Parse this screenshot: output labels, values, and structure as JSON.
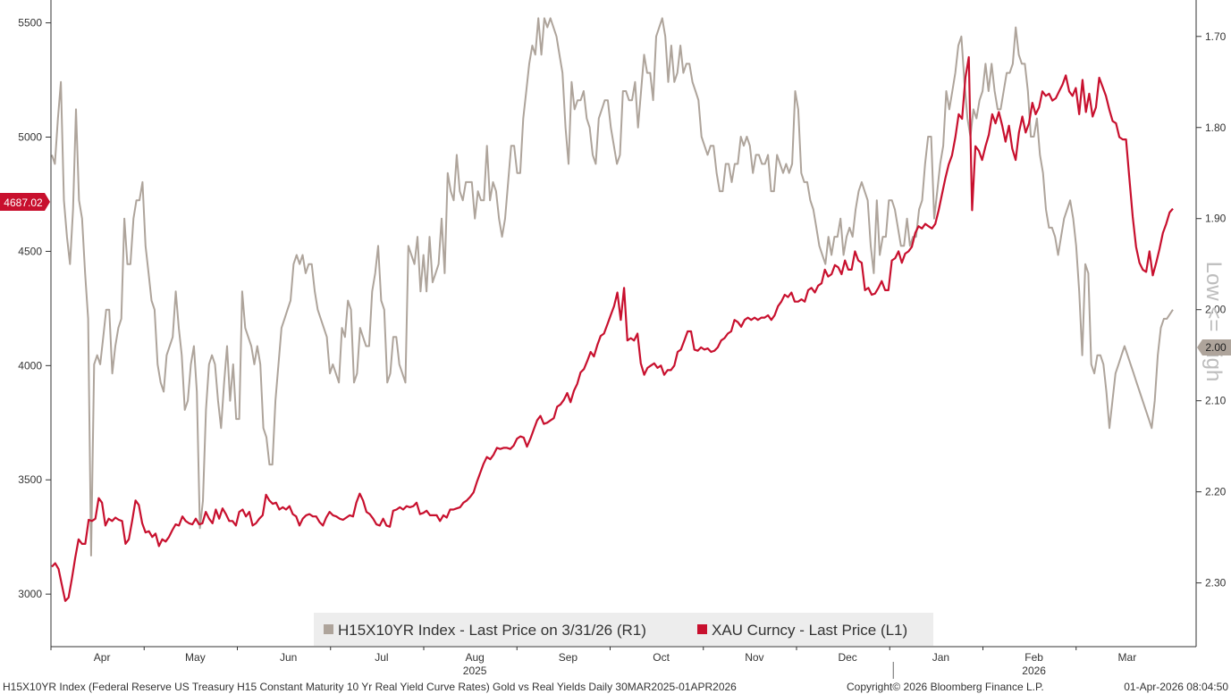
{
  "chart_data": {
    "type": "line",
    "title": "Gold vs Real Yields",
    "x_range": [
      "30MAR2025",
      "01APR2026"
    ],
    "month_labels": [
      "Apr",
      "May",
      "Jun",
      "Jul",
      "Aug",
      "Sep",
      "Oct",
      "Nov",
      "Dec",
      "Jan",
      "Feb",
      "Mar"
    ],
    "year_labels": [
      {
        "after": "Jul",
        "text": "2025"
      },
      {
        "after": "Jan",
        "text": "2026"
      }
    ],
    "left_axis": {
      "ylim": [
        2770,
        5600
      ],
      "ticks": [
        "3000",
        "3500",
        "4000",
        "4500",
        "5000",
        "5500"
      ]
    },
    "right_axis": {
      "ylim": [
        1.66,
        2.37
      ],
      "inverted": true,
      "ticks": [
        "1.70",
        "1.80",
        "1.90",
        "2.00",
        "2.10",
        "2.20",
        "2.30"
      ],
      "label": "Low <= High"
    },
    "series": [
      {
        "name": "XAU Curncy - Last Price (L1)",
        "axis": "left",
        "color": "#c8102e",
        "last_value": "4687.02",
        "values": [
          3120,
          3135,
          3110,
          3040,
          2970,
          2985,
          3070,
          3160,
          3240,
          3220,
          3220,
          3325,
          3320,
          3330,
          3420,
          3400,
          3300,
          3330,
          3320,
          3335,
          3325,
          3320,
          3220,
          3240,
          3320,
          3410,
          3390,
          3310,
          3270,
          3275,
          3250,
          3265,
          3210,
          3240,
          3230,
          3250,
          3280,
          3305,
          3300,
          3340,
          3320,
          3310,
          3305,
          3330,
          3305,
          3310,
          3360,
          3330,
          3310,
          3370,
          3330,
          3375,
          3350,
          3320,
          3320,
          3300,
          3360,
          3370,
          3340,
          3360,
          3300,
          3310,
          3330,
          3345,
          3435,
          3410,
          3395,
          3400,
          3370,
          3380,
          3370,
          3385,
          3350,
          3340,
          3300,
          3330,
          3345,
          3350,
          3340,
          3340,
          3315,
          3300,
          3335,
          3360,
          3345,
          3340,
          3330,
          3325,
          3335,
          3345,
          3340,
          3400,
          3440,
          3410,
          3360,
          3350,
          3330,
          3305,
          3300,
          3330,
          3300,
          3295,
          3365,
          3370,
          3380,
          3370,
          3385,
          3380,
          3385,
          3400,
          3350,
          3355,
          3365,
          3345,
          3345,
          3345,
          3320,
          3345,
          3335,
          3370,
          3370,
          3375,
          3380,
          3400,
          3410,
          3425,
          3445,
          3490,
          3530,
          3570,
          3600,
          3590,
          3610,
          3640,
          3635,
          3640,
          3640,
          3635,
          3650,
          3680,
          3690,
          3685,
          3645,
          3680,
          3720,
          3760,
          3780,
          3745,
          3750,
          3760,
          3770,
          3820,
          3830,
          3850,
          3880,
          3840,
          3890,
          3920,
          3970,
          3985,
          4020,
          4060,
          4040,
          4090,
          4130,
          4140,
          4180,
          4220,
          4260,
          4320,
          4200,
          4340,
          4110,
          4120,
          4110,
          4140,
          4010,
          3960,
          3990,
          4000,
          4010,
          3990,
          4000,
          3960,
          3980,
          3980,
          4000,
          4060,
          4070,
          4110,
          4150,
          4150,
          4070,
          4065,
          4080,
          4070,
          4075,
          4060,
          4065,
          4080,
          4110,
          4120,
          4140,
          4150,
          4200,
          4190,
          4170,
          4200,
          4210,
          4200,
          4210,
          4200,
          4210,
          4210,
          4220,
          4200,
          4220,
          4260,
          4280,
          4310,
          4300,
          4320,
          4280,
          4280,
          4290,
          4280,
          4330,
          4340,
          4320,
          4350,
          4360,
          4420,
          4390,
          4400,
          4440,
          4430,
          4400,
          4460,
          4420,
          4420,
          4500,
          4460,
          4450,
          4330,
          4340,
          4310,
          4315,
          4340,
          4370,
          4330,
          4330,
          4460,
          4470,
          4500,
          4450,
          4490,
          4500,
          4520,
          4580,
          4610,
          4600,
          4620,
          4610,
          4600,
          4620,
          4680,
          4750,
          4820,
          4880,
          4920,
          5000,
          5100,
          5080,
          5260,
          5350,
          4680,
          4960,
          4940,
          4900,
          4960,
          5010,
          5100,
          5060,
          5110,
          5050,
          4980,
          5050,
          4950,
          4900,
          5020,
          5090,
          5020,
          5060,
          5150,
          5100,
          5130,
          5200,
          5180,
          5190,
          5160,
          5170,
          5200,
          5230,
          5270,
          5200,
          5180,
          5215,
          5100,
          5250,
          5110,
          5190,
          5090,
          5130,
          5260,
          5220,
          5180,
          5120,
          5070,
          5060,
          5000,
          4990,
          4990,
          4820,
          4650,
          4520,
          4450,
          4420,
          4410,
          4500,
          4395,
          4450,
          4510,
          4580,
          4620,
          4670,
          4687
        ]
      },
      {
        "name": "H15X10YR Index - Last Price on 3/31/26 (R1)",
        "axis": "right",
        "color": "#aea49b",
        "last_value": "2.00",
        "values": [
          1.83,
          1.84,
          1.79,
          1.75,
          1.88,
          1.92,
          1.95,
          1.89,
          1.78,
          1.88,
          1.9,
          1.96,
          2.01,
          2.27,
          2.06,
          2.05,
          2.06,
          2.03,
          2.0,
          2.0,
          2.07,
          2.04,
          2.02,
          2.01,
          1.9,
          1.95,
          1.95,
          1.9,
          1.88,
          1.88,
          1.86,
          1.93,
          1.96,
          1.99,
          2.0,
          2.06,
          2.08,
          2.09,
          2.05,
          2.04,
          2.03,
          1.98,
          2.02,
          2.05,
          2.11,
          2.1,
          2.06,
          2.04,
          2.09,
          2.24,
          2.21,
          2.11,
          2.06,
          2.05,
          2.06,
          2.1,
          2.13,
          2.08,
          2.04,
          2.1,
          2.06,
          2.12,
          2.12,
          1.98,
          2.02,
          2.03,
          2.04,
          2.06,
          2.04,
          2.06,
          2.13,
          2.14,
          2.17,
          2.17,
          2.1,
          2.06,
          2.02,
          2.01,
          2.0,
          1.99,
          1.95,
          1.94,
          1.95,
          1.94,
          1.96,
          1.95,
          1.95,
          1.98,
          2.0,
          2.01,
          2.02,
          2.03,
          2.07,
          2.06,
          2.07,
          2.08,
          2.02,
          2.03,
          1.99,
          2.0,
          2.08,
          2.07,
          2.02,
          2.03,
          2.04,
          2.04,
          1.98,
          1.96,
          1.93,
          1.99,
          2.0,
          2.08,
          2.07,
          2.03,
          2.03,
          2.06,
          2.07,
          2.08,
          1.93,
          1.94,
          1.95,
          1.92,
          1.98,
          1.94,
          1.98,
          1.92,
          1.97,
          1.96,
          1.95,
          1.9,
          1.96,
          1.85,
          1.87,
          1.88,
          1.83,
          1.87,
          1.88,
          1.86,
          1.86,
          1.86,
          1.9,
          1.87,
          1.88,
          1.88,
          1.82,
          1.88,
          1.86,
          1.87,
          1.9,
          1.92,
          1.9,
          1.86,
          1.82,
          1.82,
          1.85,
          1.85,
          1.79,
          1.76,
          1.73,
          1.71,
          1.72,
          1.68,
          1.72,
          1.68,
          1.69,
          1.68,
          1.69,
          1.7,
          1.72,
          1.74,
          1.8,
          1.84,
          1.75,
          1.78,
          1.77,
          1.77,
          1.76,
          1.79,
          1.8,
          1.83,
          1.84,
          1.79,
          1.78,
          1.77,
          1.77,
          1.8,
          1.82,
          1.84,
          1.83,
          1.76,
          1.76,
          1.77,
          1.77,
          1.75,
          1.8,
          1.76,
          1.72,
          1.74,
          1.74,
          1.77,
          1.7,
          1.69,
          1.68,
          1.7,
          1.75,
          1.71,
          1.75,
          1.74,
          1.71,
          1.74,
          1.73,
          1.73,
          1.75,
          1.76,
          1.77,
          1.81,
          1.82,
          1.83,
          1.82,
          1.82,
          1.85,
          1.87,
          1.87,
          1.84,
          1.84,
          1.86,
          1.84,
          1.84,
          1.81,
          1.82,
          1.81,
          1.82,
          1.85,
          1.83,
          1.83,
          1.84,
          1.84,
          1.83,
          1.87,
          1.87,
          1.83,
          1.84,
          1.85,
          1.84,
          1.85,
          1.84,
          1.76,
          1.78,
          1.85,
          1.86,
          1.86,
          1.88,
          1.89,
          1.91,
          1.93,
          1.94,
          1.95,
          1.92,
          1.94,
          1.92,
          1.92,
          1.9,
          1.94,
          1.92,
          1.91,
          1.92,
          1.89,
          1.87,
          1.86,
          1.87,
          1.88,
          1.93,
          1.96,
          1.88,
          1.94,
          1.92,
          1.92,
          1.88,
          1.88,
          1.89,
          1.91,
          1.93,
          1.93,
          1.9,
          1.93,
          1.92,
          1.92,
          1.89,
          1.88,
          1.84,
          1.81,
          1.81,
          1.9,
          1.87,
          1.84,
          1.82,
          1.76,
          1.78,
          1.76,
          1.74,
          1.71,
          1.7,
          1.75,
          1.79,
          1.81,
          1.78,
          1.79,
          1.77,
          1.76,
          1.73,
          1.76,
          1.73,
          1.76,
          1.78,
          1.78,
          1.76,
          1.74,
          1.74,
          1.73,
          1.69,
          1.72,
          1.73,
          1.73,
          1.76,
          1.81,
          1.81,
          1.79,
          1.83,
          1.85,
          1.89,
          1.91,
          1.91,
          1.92,
          1.94,
          1.92,
          1.9,
          1.89,
          1.88,
          1.9,
          1.93,
          1.98,
          2.05,
          1.95,
          1.96,
          2.06,
          2.07,
          2.05,
          2.05,
          2.06,
          2.09,
          2.13,
          2.1,
          2.07,
          2.06,
          2.05,
          2.04,
          2.05,
          2.06,
          2.07,
          2.08,
          2.09,
          2.1,
          2.11,
          2.12,
          2.13,
          2.1,
          2.05,
          2.02,
          2.01,
          2.01,
          2.005,
          2.0
        ]
      }
    ],
    "legend": [
      {
        "label": "H15X10YR Index - Last Price on 3/31/26 (R1)",
        "color": "#aea49b"
      },
      {
        "label": "XAU Curncy - Last Price (L1)",
        "color": "#c8102e"
      }
    ],
    "footer_left": "H15X10YR Index (Federal Reserve US Treasury H15 Constant Maturity 10 Yr Real Yield Curve Rates) Gold vs Real Yields Daily 30MAR2025-01APR2026",
    "footer_copyright": "Copyright© 2026 Bloomberg Finance L.P.",
    "footer_timestamp": "01-Apr-2026 08:04:50"
  }
}
